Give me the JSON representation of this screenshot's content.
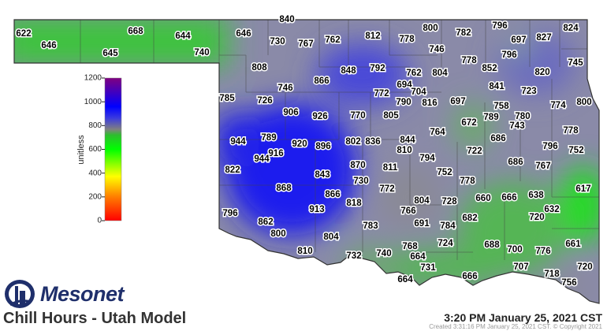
{
  "title": "Chill Hours - Utah Model",
  "valid_time": "3:20 PM January 25, 2021 CST",
  "created": "Created 3:31:16 PM January 25, 2021 CST. © Copyright 2021",
  "logo": {
    "text": "Mesonet"
  },
  "colorbar": {
    "label": "unitless",
    "ticks": [
      "0",
      "200",
      "400",
      "600",
      "800",
      "1000",
      "1200"
    ],
    "range": [
      0,
      1200
    ],
    "colors": [
      "#ff0000",
      "#ff8000",
      "#ffff00",
      "#00ff00",
      "#2ebd2e",
      "#808080",
      "#0000ff",
      "#800080"
    ]
  },
  "stations": [
    622,
    646,
    668,
    645,
    644,
    740,
    646,
    840,
    730,
    767,
    762,
    812,
    778,
    800,
    782,
    796,
    697,
    827,
    824,
    746,
    778,
    852,
    796,
    745,
    820,
    808,
    848,
    792,
    762,
    804,
    694,
    704,
    772,
    790,
    816,
    697,
    841,
    723,
    774,
    800,
    746,
    866,
    785,
    726,
    906,
    926,
    770,
    805,
    758,
    789,
    780,
    743,
    672,
    686,
    778,
    764,
    944,
    789,
    920,
    916,
    896,
    802,
    836,
    844,
    810,
    722,
    796,
    752,
    944,
    822,
    870,
    811,
    794,
    686,
    767,
    752,
    843,
    730,
    778,
    617,
    868,
    866,
    772,
    804,
    728,
    660,
    666,
    638,
    913,
    818,
    766,
    632,
    796,
    862,
    691,
    784,
    682,
    720,
    783,
    800,
    804,
    768,
    724,
    688,
    700,
    776,
    661,
    810,
    732,
    740,
    664,
    731,
    707,
    720,
    718,
    664,
    666,
    756
  ]
}
